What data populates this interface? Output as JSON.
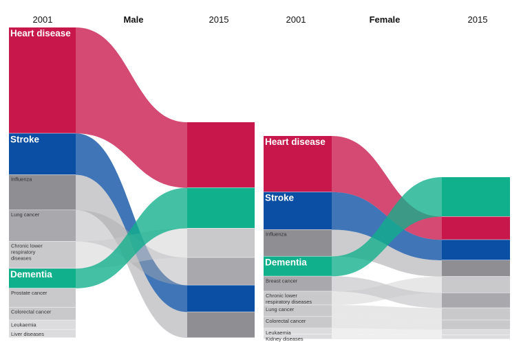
{
  "colors": {
    "heart_disease": "#c8174a",
    "stroke": "#0a4fa3",
    "dementia": "#10b08c",
    "grey_dark": "#8e8e93",
    "grey_mid": "#a9a9ad",
    "grey_light": "#c9c9cc",
    "grey_pale": "#dcdcde"
  },
  "chart_data": [
    {
      "type": "sankey",
      "title": "Male",
      "left_label": "2001",
      "right_label": "2015",
      "categories_2001": [
        {
          "name": "Heart disease",
          "value": 156,
          "rank": 1,
          "emphasis": true,
          "color": "heart_disease"
        },
        {
          "name": "Stroke",
          "value": 61,
          "rank": 2,
          "emphasis": true,
          "color": "stroke"
        },
        {
          "name": "Influenza",
          "value": 52,
          "rank": 3,
          "emphasis": false,
          "color": "grey_dark"
        },
        {
          "name": "Lung cancer",
          "value": 46,
          "rank": 4,
          "emphasis": false,
          "color": "grey_mid"
        },
        {
          "name": "Chronic lower respiratory diseases",
          "value": 40,
          "rank": 5,
          "emphasis": false,
          "color": "grey_light"
        },
        {
          "name": "Dementia",
          "value": 29,
          "rank": 6,
          "emphasis": true,
          "color": "dementia"
        },
        {
          "name": "Prostate cancer",
          "value": 28,
          "rank": 7,
          "emphasis": false,
          "color": "grey_light"
        },
        {
          "name": "Colorectal cancer",
          "value": 19,
          "rank": 8,
          "emphasis": false,
          "color": "grey_light"
        },
        {
          "name": "Leukaemia",
          "value": 14,
          "rank": 9,
          "emphasis": false,
          "color": "grey_pale"
        },
        {
          "name": "Liver diseases",
          "value": 12,
          "rank": 10,
          "emphasis": false,
          "color": "grey_pale"
        }
      ],
      "ranks_2015": [
        {
          "name": "Heart disease",
          "value": 76,
          "rank": 1
        },
        {
          "name": "Dementia",
          "value": 47,
          "rank": 2
        },
        {
          "name": "Chronic lower respiratory diseases",
          "value": 34,
          "rank": 3
        },
        {
          "name": "Lung cancer",
          "value": 32,
          "rank": 4
        },
        {
          "name": "Stroke",
          "value": 31,
          "rank": 5
        },
        {
          "name": "Influenza",
          "value": 30,
          "rank": 6
        }
      ]
    },
    {
      "type": "sankey",
      "title": "Female",
      "left_label": "2001",
      "right_label": "2015",
      "categories_2001": [
        {
          "name": "Heart disease",
          "value": 82,
          "rank": 1,
          "emphasis": true,
          "color": "heart_disease"
        },
        {
          "name": "Stroke",
          "value": 55,
          "rank": 2,
          "emphasis": true,
          "color": "stroke"
        },
        {
          "name": "Influenza",
          "value": 39,
          "rank": 3,
          "emphasis": false,
          "color": "grey_dark"
        },
        {
          "name": "Dementia",
          "value": 29,
          "rank": 4,
          "emphasis": true,
          "color": "dementia"
        },
        {
          "name": "Breast cancer",
          "value": 22,
          "rank": 5,
          "emphasis": false,
          "color": "grey_mid"
        },
        {
          "name": "Chronic lower respiratory diseases",
          "value": 20,
          "rank": 6,
          "emphasis": false,
          "color": "grey_light"
        },
        {
          "name": "Lung cancer",
          "value": 17,
          "rank": 7,
          "emphasis": false,
          "color": "grey_light"
        },
        {
          "name": "Colorectal cancer",
          "value": 17,
          "rank": 8,
          "emphasis": false,
          "color": "grey_light"
        },
        {
          "name": "Leukaemia",
          "value": 9,
          "rank": 9,
          "emphasis": false,
          "color": "grey_pale"
        },
        {
          "name": "Kidney diseases",
          "value": 7,
          "rank": 10,
          "emphasis": false,
          "color": "grey_pale"
        }
      ],
      "ranks_2015": [
        {
          "name": "Dementia",
          "value": 58,
          "rank": 1
        },
        {
          "name": "Heart disease",
          "value": 34,
          "rank": 2
        },
        {
          "name": "Stroke",
          "value": 30,
          "rank": 3
        },
        {
          "name": "Influenza",
          "value": 24,
          "rank": 4
        },
        {
          "name": "Chronic lower respiratory diseases",
          "value": 24,
          "rank": 5
        },
        {
          "name": "Breast cancer",
          "value": 22,
          "rank": 6
        },
        {
          "name": "Lung cancer",
          "value": 18,
          "rank": 7
        },
        {
          "name": "Colorectal cancer",
          "value": 14,
          "rank": 8
        },
        {
          "name": "Leukaemia",
          "value": 8,
          "rank": 9
        },
        {
          "name": "Kidney diseases",
          "value": 6,
          "rank": 10
        }
      ]
    }
  ]
}
